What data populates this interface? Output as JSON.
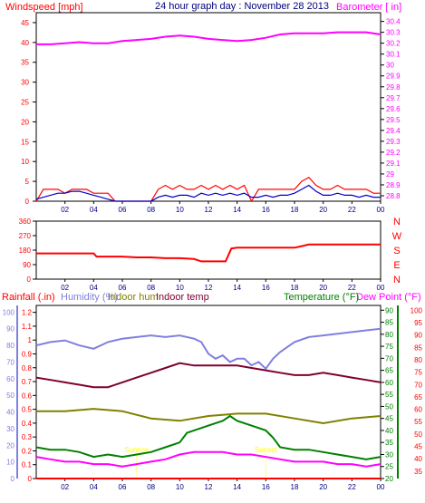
{
  "chart_data": [
    {
      "type": "line",
      "title": "24 hour graph day : November 28 2013",
      "left_axis_label": "Windspeed [mph]",
      "right_axis_label": "Barometer [ in]",
      "left_ticks": [
        "0",
        "5",
        "10",
        "15",
        "20",
        "25",
        "30",
        "35",
        "40",
        "45"
      ],
      "right_ticks": [
        "28.8",
        "28.9",
        "29",
        "29.1",
        "29.2",
        "29.3",
        "29.4",
        "29.5",
        "29.6",
        "29.7",
        "29.8",
        "29.9",
        "30",
        "30.1",
        "30.2",
        "30.3",
        "30.4"
      ],
      "x_ticks": [
        "02",
        "04",
        "06",
        "08",
        "10",
        "12",
        "14",
        "16",
        "18",
        "20",
        "22",
        "00"
      ],
      "ylim_left": [
        0,
        47.5
      ],
      "ylim_right": [
        28.75,
        30.48
      ],
      "colors": {
        "wind": "#ff0000",
        "wind_avg": "#0000cc",
        "barometer": "#ff00ff"
      },
      "series": [
        {
          "axis": "right",
          "x": [
            0,
            1,
            2,
            3,
            4,
            5,
            6,
            7,
            8,
            9,
            10,
            11,
            12,
            13,
            14,
            15,
            16,
            17,
            18,
            19,
            20,
            21,
            22,
            23,
            24
          ],
          "values": [
            30.19,
            30.19,
            30.2,
            30.21,
            30.2,
            30.2,
            30.22,
            30.23,
            30.24,
            30.26,
            30.27,
            30.26,
            30.24,
            30.23,
            30.22,
            30.23,
            30.25,
            30.28,
            30.29,
            30.29,
            30.29,
            30.3,
            30.3,
            30.3,
            30.28
          ]
        },
        {
          "axis": "left",
          "x": [
            0,
            0.5,
            1,
            1.5,
            2,
            2.5,
            3,
            3.5,
            4,
            4.5,
            5,
            5.5,
            6,
            6.5,
            7,
            7.5,
            8,
            8.5,
            9,
            9.5,
            10,
            10.5,
            11,
            11.5,
            12,
            12.5,
            13,
            13.5,
            14,
            14.5,
            15,
            15.5,
            16,
            16.5,
            17,
            17.5,
            18,
            18.5,
            19,
            19.5,
            20,
            20.5,
            21,
            21.5,
            22,
            22.5,
            23,
            23.5,
            24
          ],
          "values": [
            0,
            3,
            3,
            3,
            2,
            3,
            3,
            3,
            2,
            2,
            2,
            0,
            0,
            0,
            0,
            0,
            0,
            3,
            4,
            3,
            4,
            3,
            3,
            4,
            3,
            4,
            3,
            4,
            3,
            4,
            0,
            3,
            3,
            3,
            3,
            3,
            3,
            5,
            6,
            4,
            3,
            3,
            4,
            3,
            3,
            3,
            3,
            2,
            2
          ]
        },
        {
          "axis": "left",
          "x": [
            0,
            0.5,
            1,
            1.5,
            2,
            2.5,
            3,
            3.5,
            4,
            4.5,
            5,
            5.5,
            6,
            6.5,
            7,
            7.5,
            8,
            8.5,
            9,
            9.5,
            10,
            10.5,
            11,
            11.5,
            12,
            12.5,
            13,
            13.5,
            14,
            14.5,
            15,
            15.5,
            16,
            16.5,
            17,
            17.5,
            18,
            18.5,
            19,
            19.5,
            20,
            20.5,
            21,
            21.5,
            22,
            22.5,
            23,
            23.5,
            24
          ],
          "values": [
            0.5,
            1,
            1.5,
            2,
            2,
            2.5,
            2.5,
            2,
            1.5,
            1,
            0.5,
            0,
            0,
            0,
            0,
            0,
            0,
            1,
            1.5,
            1,
            1.5,
            1.5,
            1,
            2,
            1.5,
            2,
            1.5,
            2,
            1.5,
            2,
            1,
            1,
            1.5,
            1,
            1.5,
            1.5,
            2,
            3,
            4,
            2.5,
            1.5,
            1.5,
            2,
            1.5,
            1.5,
            1,
            1.5,
            1,
            1
          ]
        }
      ]
    },
    {
      "type": "line",
      "ylim": [
        0,
        360
      ],
      "y_ticks": [
        "0",
        "90",
        "180",
        "270",
        "360"
      ],
      "compass": [
        "N",
        "W",
        "S",
        "E",
        "N"
      ],
      "x_ticks": [
        "02",
        "04",
        "06",
        "08",
        "10",
        "12",
        "14",
        "16",
        "18",
        "20",
        "22",
        "00"
      ],
      "colors": {
        "direction": "#ff0000"
      },
      "series": [
        {
          "x": [
            0,
            1,
            2,
            3,
            4,
            4.2,
            5,
            6,
            7,
            8,
            9,
            10,
            11,
            11.5,
            12,
            12.8,
            13.2,
            13.6,
            14,
            16,
            18,
            18.5,
            19,
            20,
            21,
            22,
            23,
            24
          ],
          "values": [
            160,
            160,
            160,
            160,
            160,
            140,
            140,
            140,
            135,
            135,
            130,
            130,
            125,
            110,
            110,
            110,
            110,
            190,
            195,
            195,
            195,
            205,
            215,
            215,
            215,
            215,
            215,
            215
          ]
        }
      ]
    },
    {
      "type": "line",
      "label_rainfall": "Rainfall (.in)",
      "label_humidity": "Humidity (%)",
      "label_indoor_hum": "Indoor hum",
      "label_indoor_temp": "Indoor temp",
      "label_temperature": "Temperature (°F)",
      "label_dewpoint": "Dew Point (°F)",
      "rain_ticks": [
        "0",
        "0.1",
        "0.2",
        "0.3",
        "0.4",
        "0.5",
        "0.6",
        "0.7",
        "0.8",
        "0.9",
        "1",
        "1.1",
        "1.2"
      ],
      "hum_ticks": [
        "0",
        "10",
        "20",
        "30",
        "40",
        "50",
        "60",
        "70",
        "80",
        "90",
        "100"
      ],
      "temp_ticks": [
        "20",
        "25",
        "30",
        "35",
        "40",
        "45",
        "50",
        "55",
        "60",
        "65",
        "70",
        "75",
        "80",
        "85",
        "90"
      ],
      "dew_ticks": [
        "35",
        "40",
        "45",
        "50",
        "55",
        "60",
        "65",
        "70",
        "75",
        "80",
        "85",
        "90",
        "95",
        "100"
      ],
      "x_ticks": [
        "02",
        "04",
        "06",
        "08",
        "10",
        "12",
        "14",
        "16",
        "18",
        "20",
        "22",
        "00"
      ],
      "ylim_temp": [
        20,
        92
      ],
      "markers": [
        {
          "x": 7,
          "label": "Sunrise"
        },
        {
          "x": 16,
          "label": "Sunset"
        }
      ],
      "colors": {
        "humidity": "#8080e0",
        "indoor_hum": "#808000",
        "indoor_temp": "#800030",
        "temperature": "#008000",
        "dewpoint": "#ff00ff",
        "rain": "#ff0000"
      },
      "series": [
        {
          "x": [
            0,
            1,
            2,
            3,
            4,
            5,
            6,
            7,
            8,
            9,
            10,
            11,
            11.5,
            12,
            12.5,
            13,
            13.5,
            14,
            14.5,
            15,
            15.5,
            16,
            16.5,
            17,
            18,
            19,
            20,
            21,
            22,
            23,
            24
          ],
          "values": [
            80,
            82,
            83,
            80,
            78,
            82,
            84,
            85,
            86,
            85,
            86,
            84,
            82,
            75,
            72,
            74,
            70,
            72,
            72,
            68,
            70,
            66,
            72,
            76,
            82,
            85,
            86,
            87,
            88,
            89,
            90
          ]
        },
        {
          "x": [
            0,
            2,
            4,
            6,
            8,
            10,
            12,
            14,
            16,
            18,
            20,
            22,
            24
          ],
          "values": [
            48,
            48,
            49,
            48,
            45,
            44,
            46,
            47,
            47,
            45,
            43,
            45,
            46
          ]
        },
        {
          "x": [
            0,
            1,
            2,
            3,
            4,
            5,
            6,
            7,
            8,
            9,
            10,
            11,
            12,
            13,
            14,
            15,
            16,
            17,
            18,
            19,
            20,
            21,
            22,
            23,
            24
          ],
          "values": [
            62,
            61,
            60,
            59,
            58,
            58,
            60,
            62,
            64,
            66,
            68,
            67,
            67,
            67,
            67,
            66,
            65,
            64,
            63,
            63,
            64,
            63,
            62,
            61,
            60
          ]
        },
        {
          "x": [
            0,
            1,
            2,
            3,
            4,
            5,
            6,
            7,
            8,
            9,
            10,
            10.5,
            11,
            12,
            13,
            13.5,
            14,
            15,
            16,
            16.5,
            17,
            18,
            19,
            20,
            21,
            22,
            23,
            24
          ],
          "values": [
            33,
            32,
            32,
            31,
            29,
            30,
            29,
            30,
            31,
            33,
            35,
            39,
            40,
            42,
            44,
            46,
            44,
            42,
            40,
            37,
            33,
            32,
            32,
            31,
            30,
            29,
            28,
            29
          ]
        },
        {
          "x": [
            0,
            1,
            2,
            3,
            4,
            5,
            6,
            7,
            8,
            9,
            10,
            11,
            12,
            13,
            14,
            15,
            16,
            17,
            18,
            19,
            20,
            21,
            22,
            23,
            24
          ],
          "values": [
            29,
            28,
            27,
            27,
            26,
            26,
            25,
            26,
            27,
            28,
            30,
            31,
            31,
            31,
            30,
            30,
            29,
            28,
            27,
            27,
            27,
            26,
            26,
            25,
            26
          ]
        },
        {
          "x": [
            0,
            24
          ],
          "values": [
            0,
            0
          ]
        }
      ]
    }
  ]
}
